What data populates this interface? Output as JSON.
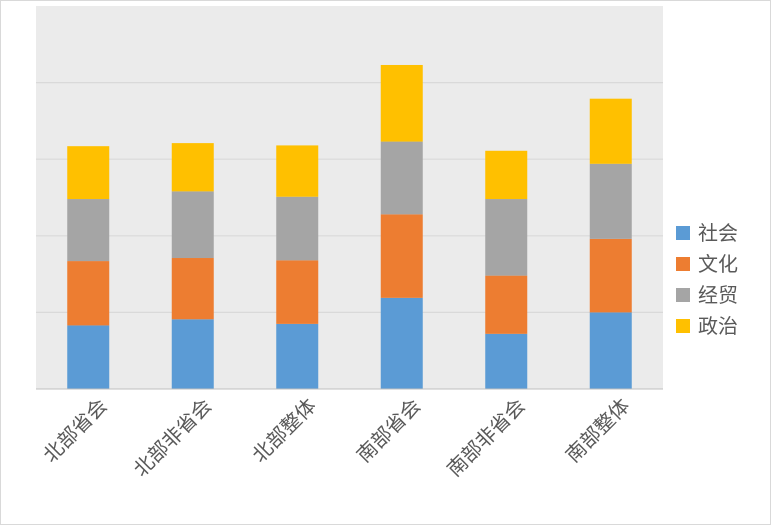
{
  "chart_data": {
    "type": "bar",
    "stacked": true,
    "categories": [
      "北部省会",
      "北部非省会",
      "北部整体",
      "南部省会",
      "南部非省会",
      "南部整体"
    ],
    "series": [
      {
        "name": "社会",
        "color": "#5b9bd5",
        "values": [
          0.83,
          0.91,
          0.85,
          1.19,
          0.72,
          1.0
        ]
      },
      {
        "name": "文化",
        "color": "#ed7d31",
        "values": [
          0.84,
          0.8,
          0.83,
          1.09,
          0.76,
          0.96
        ]
      },
      {
        "name": "经贸",
        "color": "#a5a5a5",
        "values": [
          0.81,
          0.87,
          0.83,
          0.95,
          1.0,
          0.98
        ]
      },
      {
        "name": "政治",
        "color": "#ffc000",
        "values": [
          0.69,
          0.63,
          0.67,
          1.0,
          0.63,
          0.85
        ]
      }
    ],
    "ylim": [
      0,
      5
    ],
    "grid": true,
    "legend": "right",
    "plot_background": "#ebebeb",
    "gridline_color": "#d9d9d9"
  }
}
